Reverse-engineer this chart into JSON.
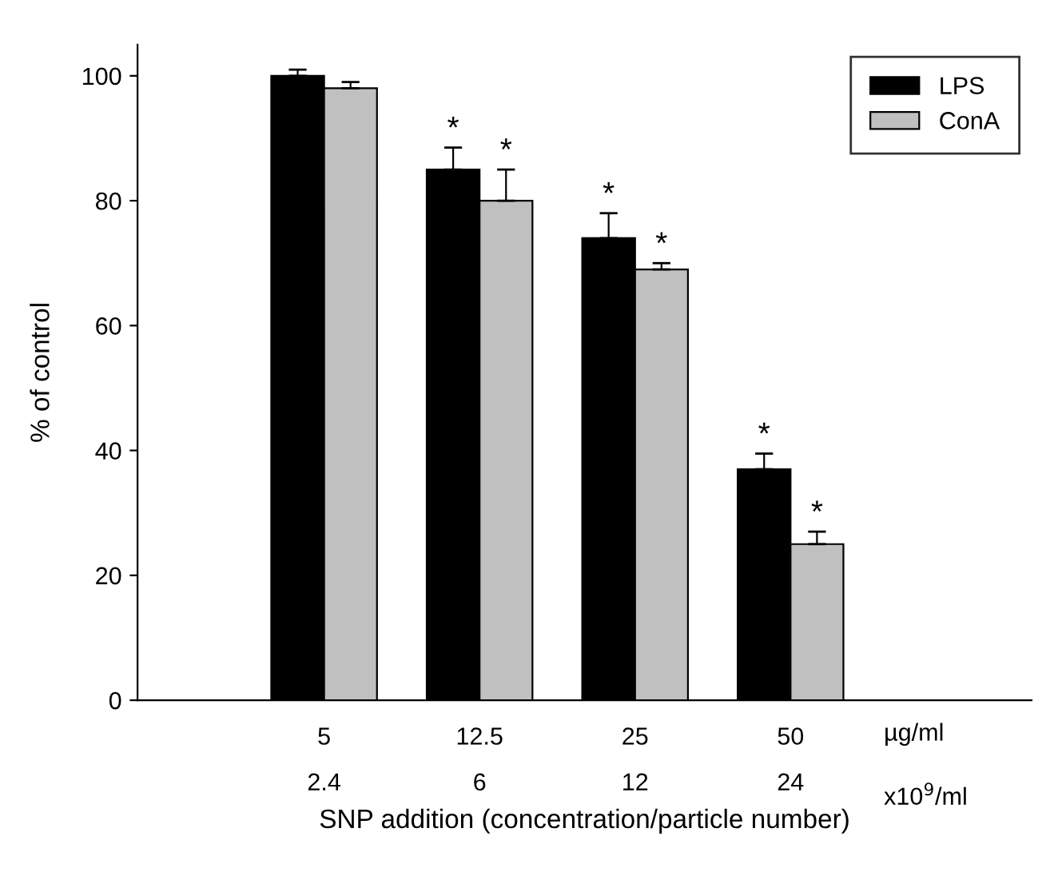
{
  "chart_data": {
    "type": "bar",
    "ylabel": "% of control",
    "xlabel": "SNP addition (concentration/particle number)",
    "categories": [
      "5\n2.4",
      "12.5\n6",
      "25\n12",
      "50\n24"
    ],
    "series": [
      {
        "name": "LPS",
        "color": "#000000",
        "values": [
          100,
          85,
          74,
          37
        ],
        "errors": [
          [
            100,
            101
          ],
          [
            85,
            88.5
          ],
          [
            74,
            78
          ],
          [
            37,
            39.5
          ]
        ],
        "value_labels": [
          null,
          "*",
          "*",
          "*"
        ]
      },
      {
        "name": "ConA",
        "color": "#c0c0c0",
        "values": [
          98,
          80,
          69,
          25
        ],
        "errors": [
          [
            98,
            99
          ],
          [
            80,
            85
          ],
          [
            69,
            70
          ],
          [
            25,
            27
          ]
        ],
        "value_labels": [
          null,
          "*",
          "*",
          "*"
        ]
      }
    ],
    "annotations": [
      "µg/ml",
      "x10$^{9}$/ml"
    ],
    "ylim": [
      0,
      105
    ],
    "yticks": [
      0,
      20,
      40,
      60,
      80,
      100
    ],
    "grid": false,
    "legend": "top right"
  }
}
